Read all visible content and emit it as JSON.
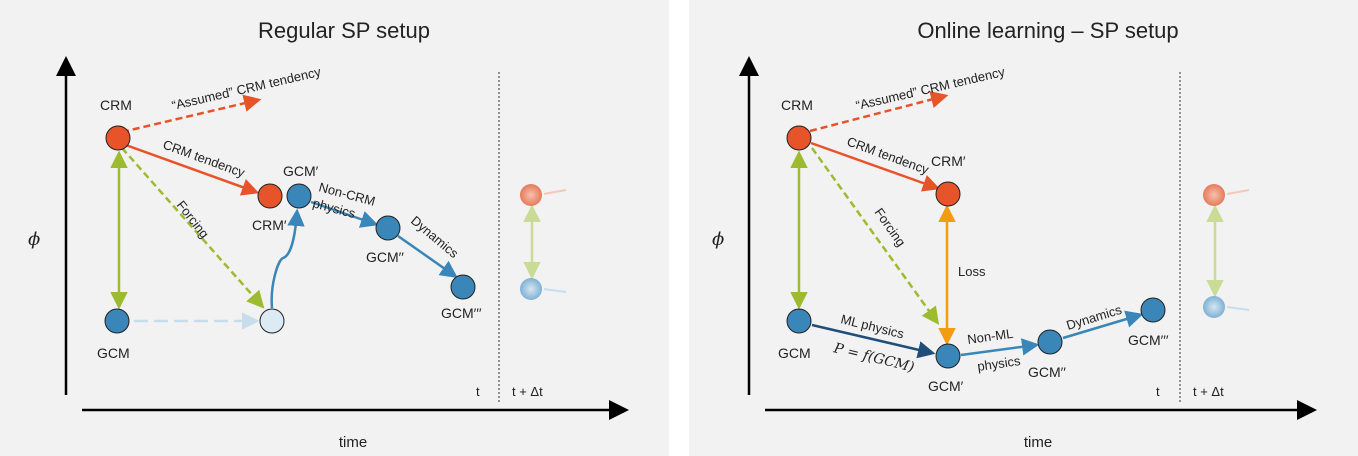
{
  "colors": {
    "crm": "#E8542A",
    "gcm": "#3A86B8",
    "forcing": "#9DBB2F",
    "loss": "#F39C12",
    "ml": "#1F4E79",
    "panel_bg": "#F2F2F2"
  },
  "left": {
    "title": "Regular SP setup",
    "y_label": "ϕ",
    "x_label": "time",
    "t_label": "t",
    "t_next_label": "t + Δt",
    "nodes": {
      "crm": "CRM",
      "gcm": "GCM",
      "crm_prime": "CRM′",
      "gcm_prime": "GCM′",
      "gcm_dprime": "GCM′′",
      "gcm_tprime": "GCM′′′"
    },
    "edges": {
      "assumed": "“Assumed” CRM tendency",
      "crm_tendency": "CRM tendency",
      "forcing": "Forcing",
      "noncrm_line1": "Non-CRM",
      "noncrm_line2": "physics",
      "dynamics": "Dynamics"
    }
  },
  "right": {
    "title": "Online learning – SP setup",
    "y_label": "ϕ",
    "x_label": "time",
    "t_label": "t",
    "t_next_label": "t + Δt",
    "nodes": {
      "crm": "CRM",
      "gcm": "GCM",
      "crm_prime": "CRM′",
      "gcm_prime": "GCM′",
      "gcm_dprime": "GCM′′",
      "gcm_tprime": "GCM′′′"
    },
    "edges": {
      "assumed": "“Assumed” CRM tendency",
      "crm_tendency": "CRM tendency",
      "forcing": "Forcing",
      "loss": "Loss",
      "ml_physics": "ML physics",
      "formula": "P = f(GCM)",
      "nonml_line1": "Non-ML",
      "nonml_line2": "physics",
      "dynamics": "Dynamics"
    }
  }
}
